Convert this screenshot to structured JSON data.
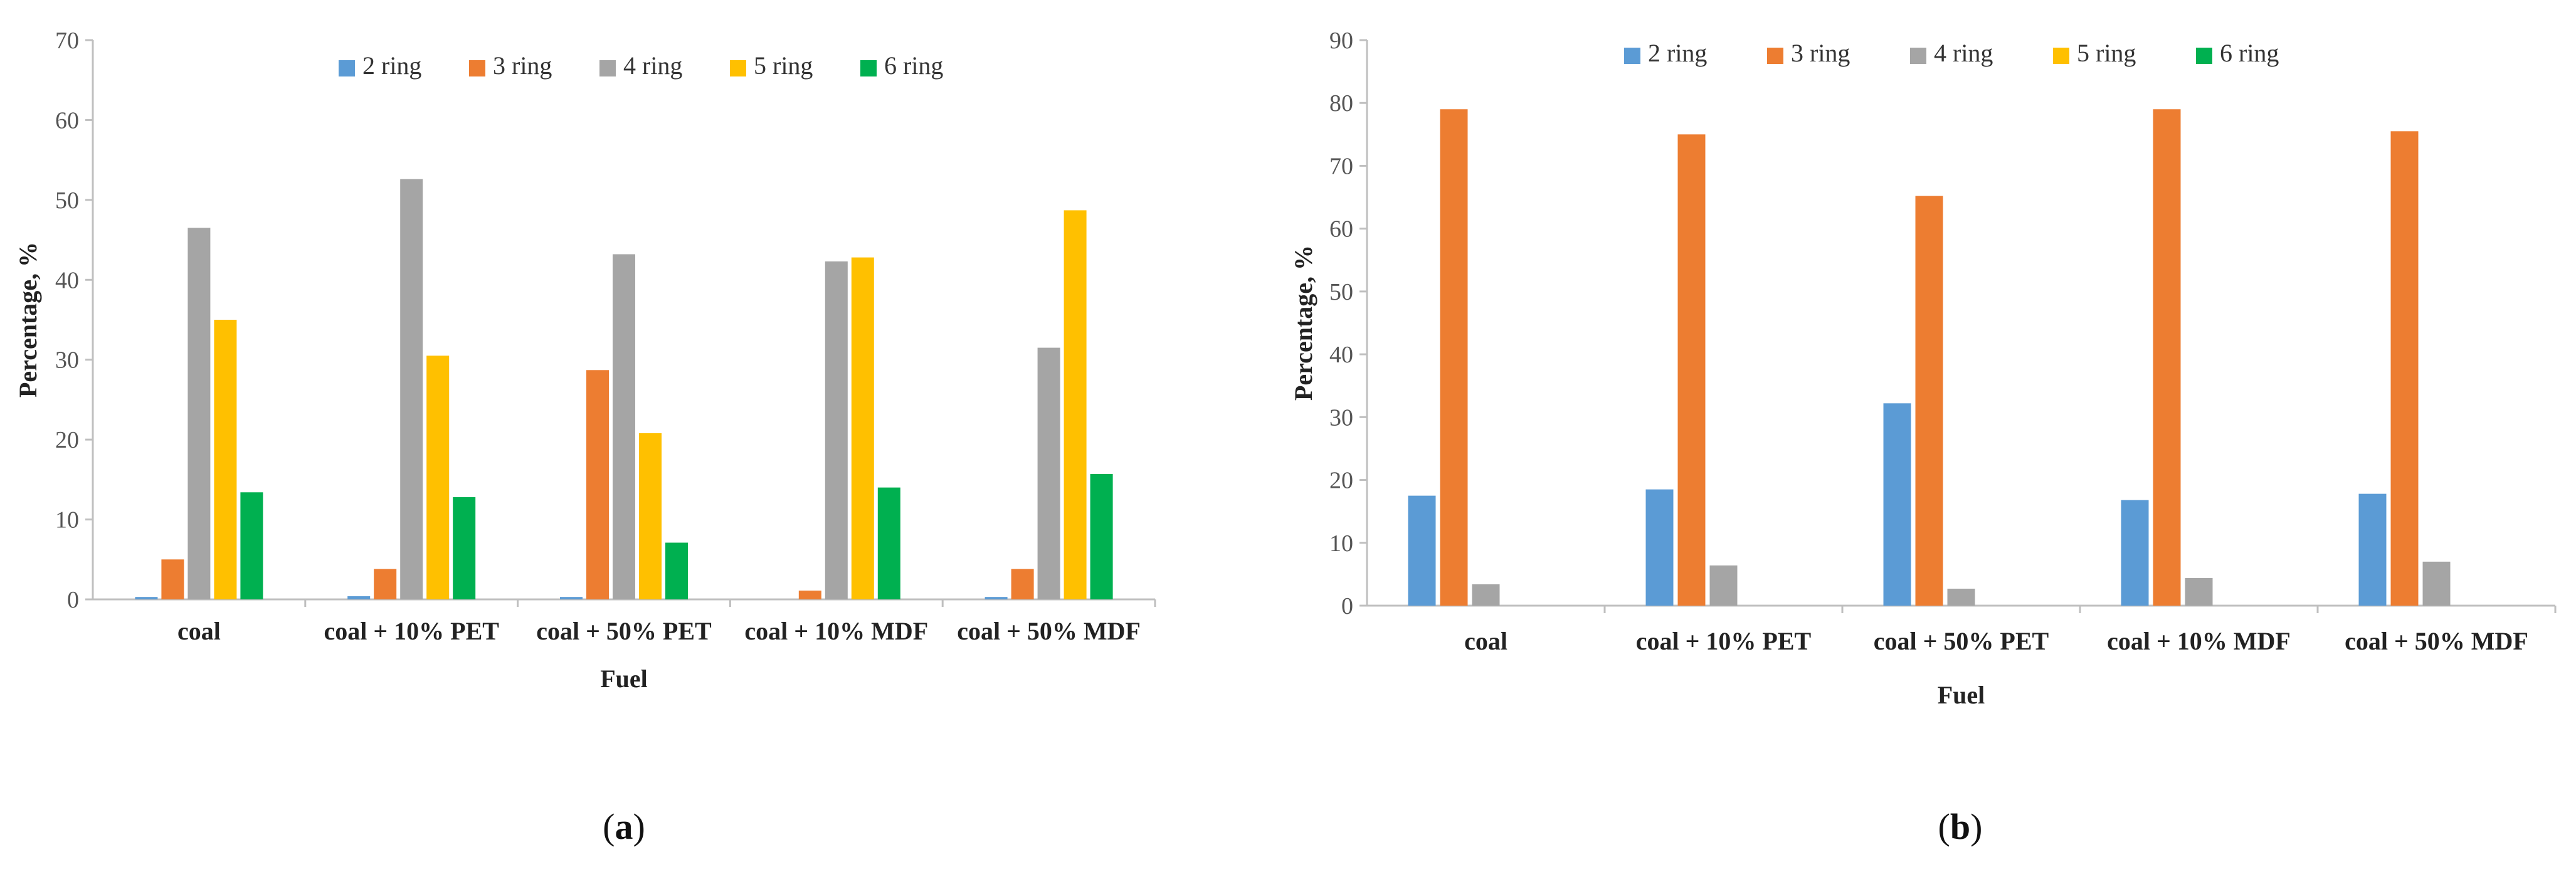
{
  "colors": {
    "2 ring": "#5B9BD5",
    "3 ring": "#ED7D31",
    "4 ring": "#A5A5A5",
    "5 ring": "#FFC000",
    "6 ring": "#00B050",
    "axis": "#BFBFBF"
  },
  "chart_data": [
    {
      "type": "bar",
      "panel_label": "a",
      "title": "",
      "xlabel": "Fuel",
      "ylabel": "Percentage, %",
      "ylim": [
        0,
        70
      ],
      "yticks": [
        0,
        10,
        20,
        30,
        40,
        50,
        60,
        70
      ],
      "grid": false,
      "legend": "top-center",
      "categories": [
        "coal",
        "coal + 10% PET",
        "coal + 50% PET",
        "coal + 10% MDF",
        "coal + 50% MDF"
      ],
      "series": [
        {
          "name": "2 ring",
          "values": [
            0.3,
            0.4,
            0.3,
            0.0,
            0.3
          ]
        },
        {
          "name": "3 ring",
          "values": [
            5.0,
            3.8,
            28.7,
            1.1,
            3.8
          ]
        },
        {
          "name": "4 ring",
          "values": [
            46.5,
            52.6,
            43.2,
            42.3,
            31.5
          ]
        },
        {
          "name": "5 ring",
          "values": [
            35.0,
            30.5,
            20.8,
            42.8,
            48.7
          ]
        },
        {
          "name": "6 ring",
          "values": [
            13.4,
            12.8,
            7.1,
            14.0,
            15.7
          ]
        }
      ]
    },
    {
      "type": "bar",
      "panel_label": "b",
      "title": "",
      "xlabel": "Fuel",
      "ylabel": "Percentage, %",
      "ylim": [
        0,
        90
      ],
      "yticks": [
        0,
        10,
        20,
        30,
        40,
        50,
        60,
        70,
        80,
        90
      ],
      "grid": false,
      "legend": "top-center",
      "categories": [
        "coal",
        "coal + 10% PET",
        "coal + 50% PET",
        "coal + 10% MDF",
        "coal + 50% MDF"
      ],
      "series": [
        {
          "name": "2 ring",
          "values": [
            17.5,
            18.5,
            32.2,
            16.8,
            17.8
          ]
        },
        {
          "name": "3 ring",
          "values": [
            79.0,
            75.0,
            65.2,
            79.0,
            75.5
          ]
        },
        {
          "name": "4 ring",
          "values": [
            3.4,
            6.4,
            2.7,
            4.4,
            7.0
          ]
        },
        {
          "name": "5 ring",
          "values": [
            0,
            0,
            0,
            0,
            0
          ]
        },
        {
          "name": "6 ring",
          "values": [
            0,
            0,
            0,
            0,
            0
          ]
        }
      ]
    }
  ]
}
